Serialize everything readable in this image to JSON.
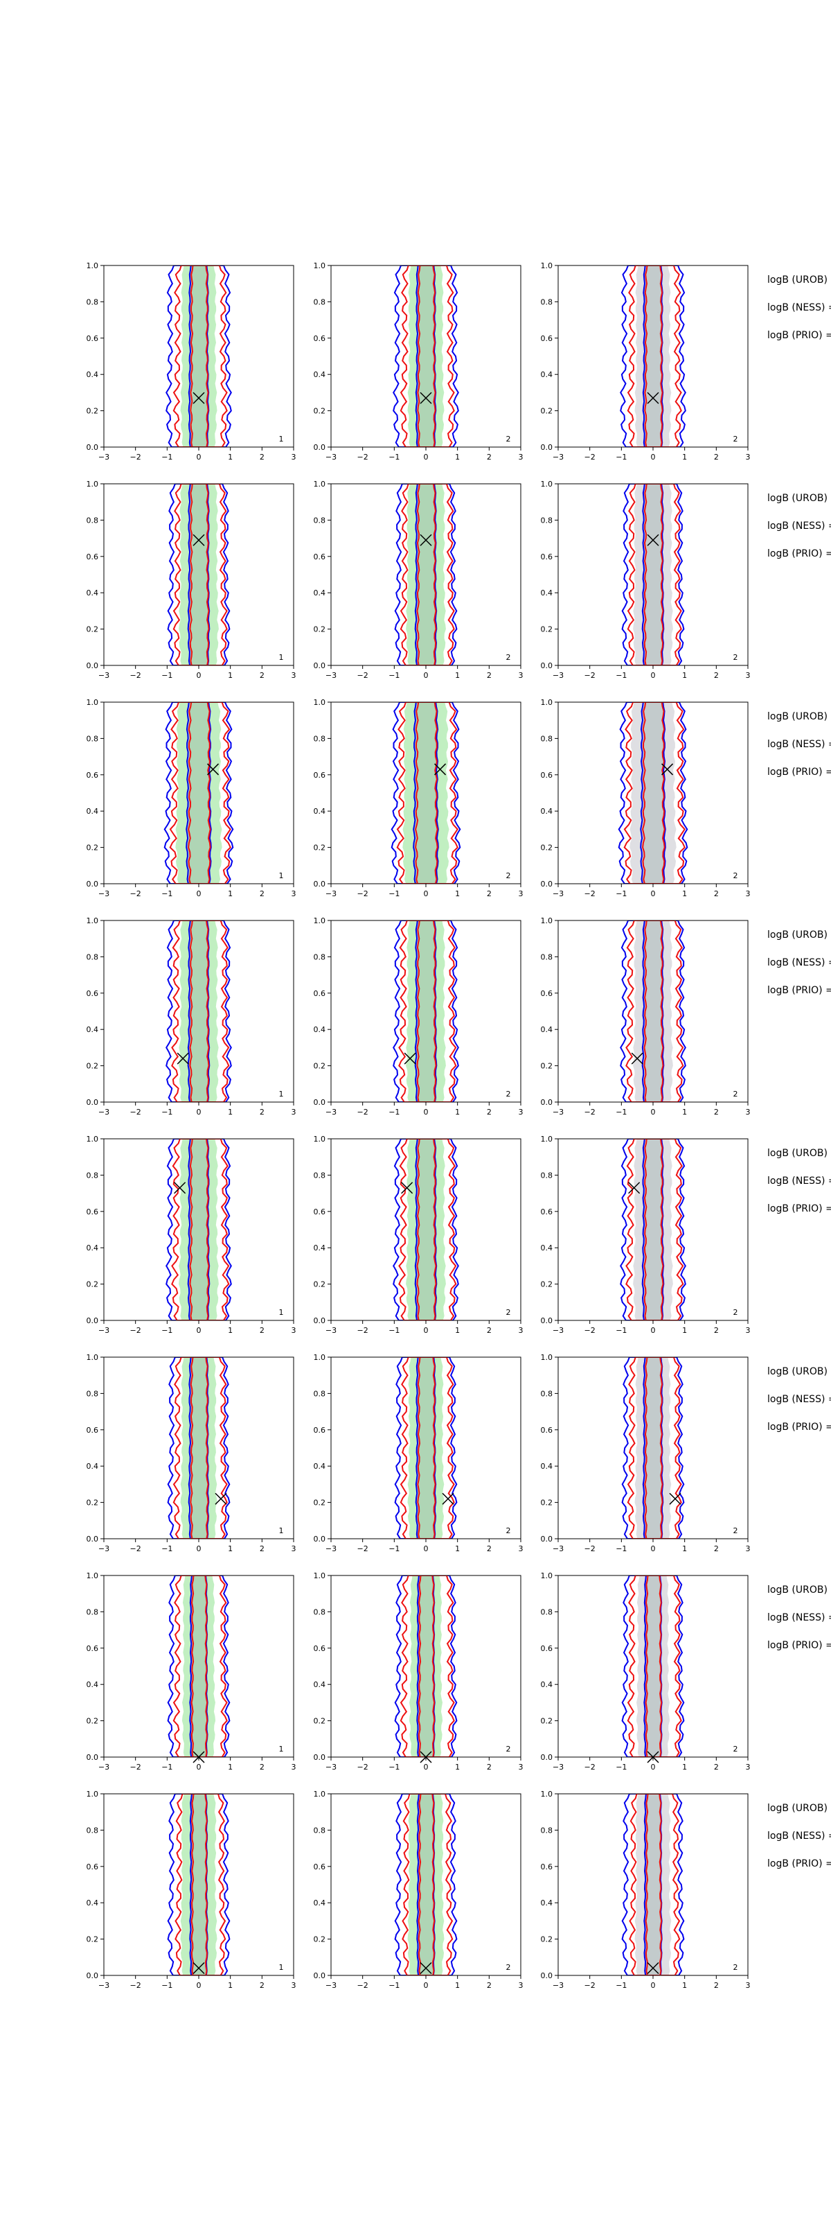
{
  "chart_data": {
    "type": "contour-grid",
    "layout": {
      "rows": 8,
      "cols": 3
    },
    "xlim": [
      -3,
      3
    ],
    "ylim": [
      0,
      1
    ],
    "xticks": [
      "−3",
      "−2",
      "−1",
      "0",
      "1",
      "2",
      "3"
    ],
    "yticks": [
      "0.0",
      "0.2",
      "0.4",
      "0.6",
      "0.8",
      "1.0"
    ],
    "series": [
      {
        "role": "filled-green",
        "color": "#b6ecb6"
      },
      {
        "role": "filled-gray",
        "color": "#d9d9de"
      },
      {
        "role": "contour-blue",
        "color": "#0000ee"
      },
      {
        "role": "contour-red",
        "color": "#ee1111"
      }
    ],
    "panel_numbers": [
      "1",
      "2",
      "2"
    ],
    "row_labels": [
      "logB (UROB) =",
      "logB (NESS) =",
      "logB (PRIO) ="
    ],
    "markers": [
      {
        "x": 0.0,
        "y": 0.27
      },
      {
        "x": 0.0,
        "y": 0.69
      },
      {
        "x": 0.45,
        "y": 0.63
      },
      {
        "x": -0.5,
        "y": 0.24
      },
      {
        "x": -0.6,
        "y": 0.73
      },
      {
        "x": 0.7,
        "y": 0.22
      },
      {
        "x": 0.0,
        "y": 0.0
      },
      {
        "x": 0.0,
        "y": 0.04
      }
    ],
    "rows": [
      {
        "green_half_width": 0.55,
        "blue_half_width": 0.95,
        "red_half_width": 0.75,
        "inner_half_width": 0.28
      },
      {
        "green_half_width": 0.6,
        "blue_half_width": 0.9,
        "red_half_width": 0.75,
        "inner_half_width": 0.3
      },
      {
        "green_half_width": 0.7,
        "blue_half_width": 1.0,
        "red_half_width": 0.85,
        "inner_half_width": 0.35
      },
      {
        "green_half_width": 0.6,
        "blue_half_width": 0.95,
        "red_half_width": 0.8,
        "inner_half_width": 0.3
      },
      {
        "green_half_width": 0.6,
        "blue_half_width": 0.95,
        "red_half_width": 0.8,
        "inner_half_width": 0.3
      },
      {
        "green_half_width": 0.55,
        "blue_half_width": 0.9,
        "red_half_width": 0.75,
        "inner_half_width": 0.28
      },
      {
        "green_half_width": 0.5,
        "blue_half_width": 0.9,
        "red_half_width": 0.75,
        "inner_half_width": 0.25
      },
      {
        "green_half_width": 0.55,
        "blue_half_width": 0.9,
        "red_half_width": 0.7,
        "inner_half_width": 0.25
      }
    ]
  }
}
